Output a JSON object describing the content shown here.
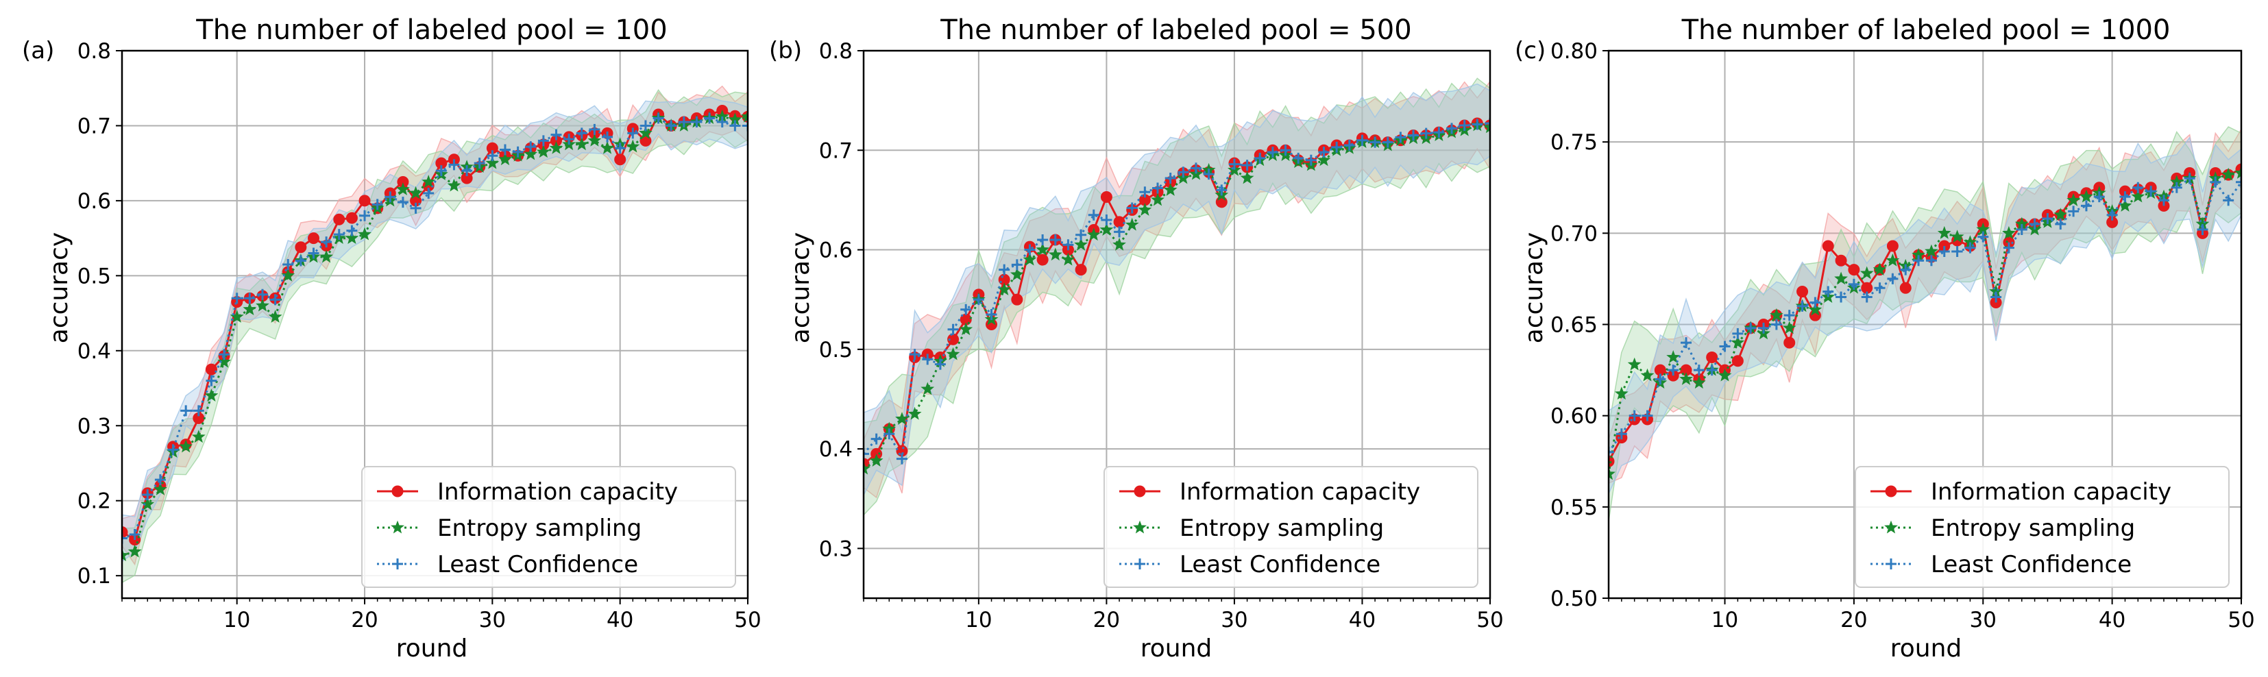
{
  "legend_entries": [
    {
      "name": "Information capacity",
      "color": "#e31a1c",
      "marker": "circle",
      "linestyle": "solid"
    },
    {
      "name": "Entropy sampling",
      "color": "#1a8a2e",
      "marker": "star",
      "linestyle": "dotted"
    },
    {
      "name": "Least Confidence",
      "color": "#2f7bbf",
      "marker": "plus",
      "linestyle": "dotted"
    }
  ],
  "band_colors": [
    "#f4a3a3",
    "#9fd3a0",
    "#9fc4e6"
  ],
  "chart_data": [
    {
      "panel_label": "(a)",
      "type": "line",
      "title": "The number of labeled pool = 100",
      "xlabel": "round",
      "ylabel": "accuracy",
      "xlim": [
        1,
        50
      ],
      "ylim": [
        0.07,
        0.8
      ],
      "xticks": [
        10,
        20,
        30,
        40,
        50
      ],
      "xtick_labels": [
        "10",
        "20",
        "30",
        "40",
        "50"
      ],
      "yticks": [
        0.1,
        0.2,
        0.3,
        0.4,
        0.5,
        0.6,
        0.7,
        0.8
      ],
      "ytick_labels": [
        "0.1",
        "0.2",
        "0.3",
        "0.4",
        "0.5",
        "0.6",
        "0.7",
        "0.8"
      ],
      "grid": true,
      "legend_position": "lower-right",
      "series": [
        {
          "name": "Information capacity",
          "values": [
            0.158,
            0.148,
            0.21,
            0.22,
            0.272,
            0.275,
            0.31,
            0.375,
            0.393,
            0.465,
            0.47,
            0.473,
            0.47,
            0.505,
            0.538,
            0.55,
            0.54,
            0.575,
            0.577,
            0.6,
            0.59,
            0.61,
            0.625,
            0.6,
            0.62,
            0.65,
            0.655,
            0.63,
            0.645,
            0.67,
            0.66,
            0.66,
            0.67,
            0.675,
            0.68,
            0.685,
            0.687,
            0.69,
            0.69,
            0.655,
            0.696,
            0.68,
            0.715,
            0.7,
            0.705,
            0.71,
            0.715,
            0.72,
            0.713,
            0.712
          ],
          "band": 0.03
        },
        {
          "name": "Entropy sampling",
          "values": [
            0.127,
            0.132,
            0.195,
            0.215,
            0.265,
            0.272,
            0.285,
            0.34,
            0.385,
            0.445,
            0.455,
            0.46,
            0.445,
            0.5,
            0.52,
            0.525,
            0.525,
            0.55,
            0.55,
            0.555,
            0.59,
            0.6,
            0.615,
            0.61,
            0.625,
            0.635,
            0.62,
            0.645,
            0.645,
            0.65,
            0.655,
            0.66,
            0.662,
            0.665,
            0.67,
            0.675,
            0.675,
            0.68,
            0.67,
            0.675,
            0.672,
            0.69,
            0.71,
            0.7,
            0.7,
            0.705,
            0.71,
            0.712,
            0.708,
            0.712
          ],
          "band": 0.035
        },
        {
          "name": "Least Confidence",
          "values": [
            0.15,
            0.155,
            0.208,
            0.228,
            0.268,
            0.32,
            0.32,
            0.36,
            0.395,
            0.47,
            0.47,
            0.475,
            0.468,
            0.515,
            0.52,
            0.53,
            0.545,
            0.555,
            0.56,
            0.58,
            0.595,
            0.605,
            0.598,
            0.59,
            0.61,
            0.64,
            0.648,
            0.64,
            0.65,
            0.66,
            0.668,
            0.665,
            0.672,
            0.68,
            0.688,
            0.682,
            0.69,
            0.695,
            0.685,
            0.67,
            0.69,
            0.7,
            0.71,
            0.7,
            0.705,
            0.705,
            0.71,
            0.705,
            0.7,
            0.7
          ],
          "band": 0.03
        }
      ]
    },
    {
      "panel_label": "(b)",
      "type": "line",
      "title": "The number of labeled pool = 500",
      "xlabel": "round",
      "ylabel": "accuracy",
      "xlim": [
        1,
        50
      ],
      "ylim": [
        0.25,
        0.8
      ],
      "xticks": [
        10,
        20,
        30,
        40,
        50
      ],
      "xtick_labels": [
        "10",
        "20",
        "30",
        "40",
        "50"
      ],
      "yticks": [
        0.3,
        0.4,
        0.5,
        0.6,
        0.7,
        0.8
      ],
      "ytick_labels": [
        "0.3",
        "0.4",
        "0.5",
        "0.6",
        "0.7",
        "0.8"
      ],
      "grid": true,
      "legend_position": "lower-right",
      "series": [
        {
          "name": "Information capacity",
          "values": [
            0.385,
            0.395,
            0.42,
            0.398,
            0.492,
            0.495,
            0.492,
            0.51,
            0.53,
            0.555,
            0.525,
            0.57,
            0.55,
            0.603,
            0.59,
            0.61,
            0.6,
            0.58,
            0.62,
            0.653,
            0.628,
            0.64,
            0.65,
            0.658,
            0.668,
            0.677,
            0.68,
            0.678,
            0.648,
            0.687,
            0.683,
            0.695,
            0.7,
            0.7,
            0.69,
            0.687,
            0.7,
            0.705,
            0.705,
            0.712,
            0.71,
            0.708,
            0.71,
            0.715,
            0.715,
            0.718,
            0.72,
            0.725,
            0.727,
            0.725
          ],
          "band": 0.04
        },
        {
          "name": "Entropy sampling",
          "values": [
            0.38,
            0.388,
            0.42,
            0.43,
            0.435,
            0.46,
            0.488,
            0.495,
            0.52,
            0.55,
            0.53,
            0.56,
            0.575,
            0.59,
            0.6,
            0.595,
            0.59,
            0.605,
            0.615,
            0.62,
            0.605,
            0.625,
            0.64,
            0.65,
            0.66,
            0.672,
            0.676,
            0.68,
            0.655,
            0.68,
            0.672,
            0.69,
            0.695,
            0.695,
            0.688,
            0.685,
            0.69,
            0.7,
            0.702,
            0.708,
            0.708,
            0.705,
            0.71,
            0.712,
            0.712,
            0.715,
            0.718,
            0.72,
            0.725,
            0.723
          ],
          "band": 0.045
        },
        {
          "name": "Least Confidence",
          "values": [
            0.395,
            0.41,
            0.415,
            0.39,
            0.495,
            0.49,
            0.485,
            0.52,
            0.54,
            0.55,
            0.535,
            0.58,
            0.585,
            0.6,
            0.61,
            0.61,
            0.605,
            0.615,
            0.635,
            0.63,
            0.618,
            0.642,
            0.658,
            0.662,
            0.672,
            0.678,
            0.682,
            0.676,
            0.66,
            0.686,
            0.685,
            0.692,
            0.698,
            0.7,
            0.692,
            0.69,
            0.698,
            0.703,
            0.705,
            0.71,
            0.708,
            0.708,
            0.713,
            0.715,
            0.717,
            0.718,
            0.722,
            0.725,
            0.726,
            0.727
          ],
          "band": 0.04
        }
      ]
    },
    {
      "panel_label": "(c)",
      "type": "line",
      "title": "The number of labeled pool = 1000",
      "xlabel": "round",
      "ylabel": "accuracy",
      "xlim": [
        1,
        50
      ],
      "ylim": [
        0.5,
        0.8
      ],
      "xticks": [
        10,
        20,
        30,
        40,
        50
      ],
      "xtick_labels": [
        "10",
        "20",
        "30",
        "40",
        "50"
      ],
      "yticks": [
        0.5,
        0.55,
        0.6,
        0.65,
        0.7,
        0.75,
        0.8
      ],
      "ytick_labels": [
        "0.50",
        "0.55",
        "0.60",
        "0.65",
        "0.70",
        "0.75",
        "0.80"
      ],
      "grid": true,
      "legend_position": "lower-right",
      "series": [
        {
          "name": "Information capacity",
          "values": [
            0.575,
            0.588,
            0.598,
            0.598,
            0.625,
            0.622,
            0.625,
            0.62,
            0.632,
            0.625,
            0.63,
            0.648,
            0.65,
            0.655,
            0.64,
            0.668,
            0.655,
            0.693,
            0.685,
            0.68,
            0.67,
            0.68,
            0.693,
            0.67,
            0.688,
            0.687,
            0.693,
            0.696,
            0.693,
            0.705,
            0.662,
            0.695,
            0.705,
            0.705,
            0.71,
            0.71,
            0.72,
            0.722,
            0.725,
            0.706,
            0.723,
            0.724,
            0.725,
            0.715,
            0.73,
            0.733,
            0.7,
            0.733,
            0.732,
            0.735
          ],
          "band": 0.02
        },
        {
          "name": "Entropy sampling",
          "values": [
            0.568,
            0.612,
            0.628,
            0.622,
            0.618,
            0.632,
            0.62,
            0.618,
            0.625,
            0.622,
            0.64,
            0.648,
            0.645,
            0.655,
            0.648,
            0.66,
            0.658,
            0.665,
            0.675,
            0.67,
            0.678,
            0.68,
            0.685,
            0.682,
            0.688,
            0.69,
            0.7,
            0.698,
            0.695,
            0.702,
            0.668,
            0.7,
            0.705,
            0.702,
            0.706,
            0.71,
            0.718,
            0.72,
            0.722,
            0.712,
            0.715,
            0.72,
            0.722,
            0.72,
            0.728,
            0.73,
            0.705,
            0.73,
            0.732,
            0.733
          ],
          "band": 0.025
        },
        {
          "name": "Least Confidence",
          "values": [
            0.58,
            0.59,
            0.6,
            0.6,
            0.62,
            0.625,
            0.64,
            0.625,
            0.625,
            0.638,
            0.645,
            0.648,
            0.648,
            0.65,
            0.655,
            0.66,
            0.662,
            0.668,
            0.665,
            0.672,
            0.665,
            0.67,
            0.675,
            0.68,
            0.685,
            0.685,
            0.69,
            0.69,
            0.692,
            0.698,
            0.665,
            0.692,
            0.702,
            0.705,
            0.708,
            0.705,
            0.712,
            0.715,
            0.72,
            0.71,
            0.72,
            0.725,
            0.723,
            0.718,
            0.725,
            0.73,
            0.702,
            0.728,
            0.718,
            0.728
          ],
          "band": 0.022
        }
      ]
    }
  ]
}
